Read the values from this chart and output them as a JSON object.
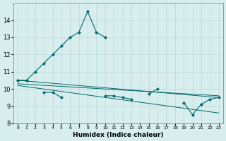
{
  "xlabel": "Humidex (Indice chaleur)",
  "x_values": [
    0,
    1,
    2,
    3,
    4,
    5,
    6,
    7,
    8,
    9,
    10,
    11,
    12,
    13,
    14,
    15,
    16,
    17,
    18,
    19,
    20,
    21,
    22,
    23
  ],
  "line_spike_y": [
    10.5,
    10.5,
    11.0,
    11.5,
    12.0,
    12.5,
    13.0,
    13.3,
    14.5,
    13.3,
    13.0,
    null,
    null,
    null,
    null,
    null,
    null,
    null,
    null,
    null,
    null,
    null,
    null,
    null
  ],
  "line_flat_y": [
    10.5,
    10.5,
    null,
    9.8,
    9.8,
    9.5,
    null,
    null,
    null,
    null,
    9.6,
    9.6,
    9.5,
    9.4,
    null,
    9.7,
    10.0,
    null,
    null,
    9.2,
    8.5,
    9.1,
    9.4,
    9.5
  ],
  "trend1_x": [
    0,
    23
  ],
  "trend1_y": [
    10.5,
    9.5
  ],
  "trend2_x": [
    0,
    23
  ],
  "trend2_y": [
    10.3,
    9.6
  ],
  "trend3_x": [
    0,
    23
  ],
  "trend3_y": [
    10.2,
    8.6
  ],
  "bg_color": "#d8eeee",
  "grid_color": "#b8d8d8",
  "line_color": "#006666",
  "ylim": [
    8,
    15
  ],
  "xlim": [
    -0.5,
    23.5
  ],
  "yticks": [
    8,
    9,
    10,
    11,
    12,
    13,
    14
  ],
  "xticks": [
    0,
    1,
    2,
    3,
    4,
    5,
    6,
    7,
    8,
    9,
    10,
    11,
    12,
    13,
    14,
    15,
    16,
    17,
    18,
    19,
    20,
    21,
    22,
    23
  ]
}
